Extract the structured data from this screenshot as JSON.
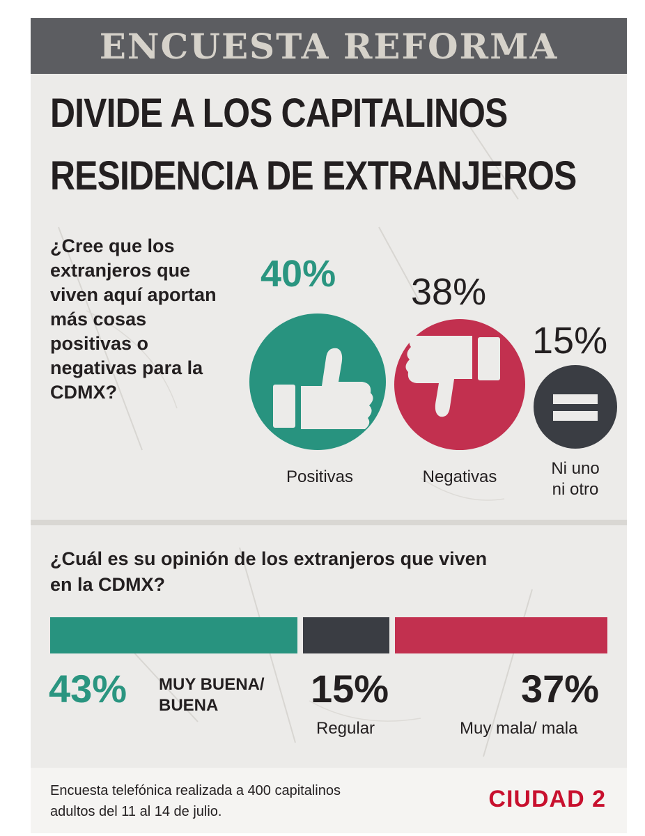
{
  "header": {
    "title": "ENCUESTA REFORMA"
  },
  "headline": {
    "line1": "DIVIDE A LOS CAPITALINOS",
    "line2": "RESIDENCIA DE EXTRANJEROS"
  },
  "colors": {
    "teal": "#28937f",
    "crimson": "#c2304f",
    "charcoal": "#3a3d43",
    "header_bg": "#5c5d61",
    "brand_red": "#c8102e"
  },
  "chart_data": [
    {
      "type": "bar",
      "title": "¿Cree que los extranjeros que viven aquí aportan más cosas positivas o negativas para la CDMX?",
      "categories": [
        "Positivas",
        "Negativas",
        "Ni uno ni otro"
      ],
      "values": [
        40,
        38,
        15
      ],
      "value_labels": [
        "40%",
        "38%",
        "15%"
      ],
      "icons": [
        "thumbs-up-icon",
        "thumbs-down-icon",
        "equals-icon"
      ],
      "unit": "%"
    },
    {
      "type": "bar",
      "stacked": true,
      "title": "¿Cuál es su opinión de los extranjeros que viven en la CDMX?",
      "categories": [
        "MUY BUENA/ BUENA",
        "Regular",
        "Muy mala/ mala"
      ],
      "values": [
        43,
        15,
        37
      ],
      "value_labels": [
        "43%",
        "15%",
        "37%"
      ],
      "unit": "%"
    }
  ],
  "footer": {
    "note": "Encuesta telefónica realizada a 400 capitalinos adultos del 11 al 14 de julio.",
    "section": "CIUDAD 2"
  }
}
